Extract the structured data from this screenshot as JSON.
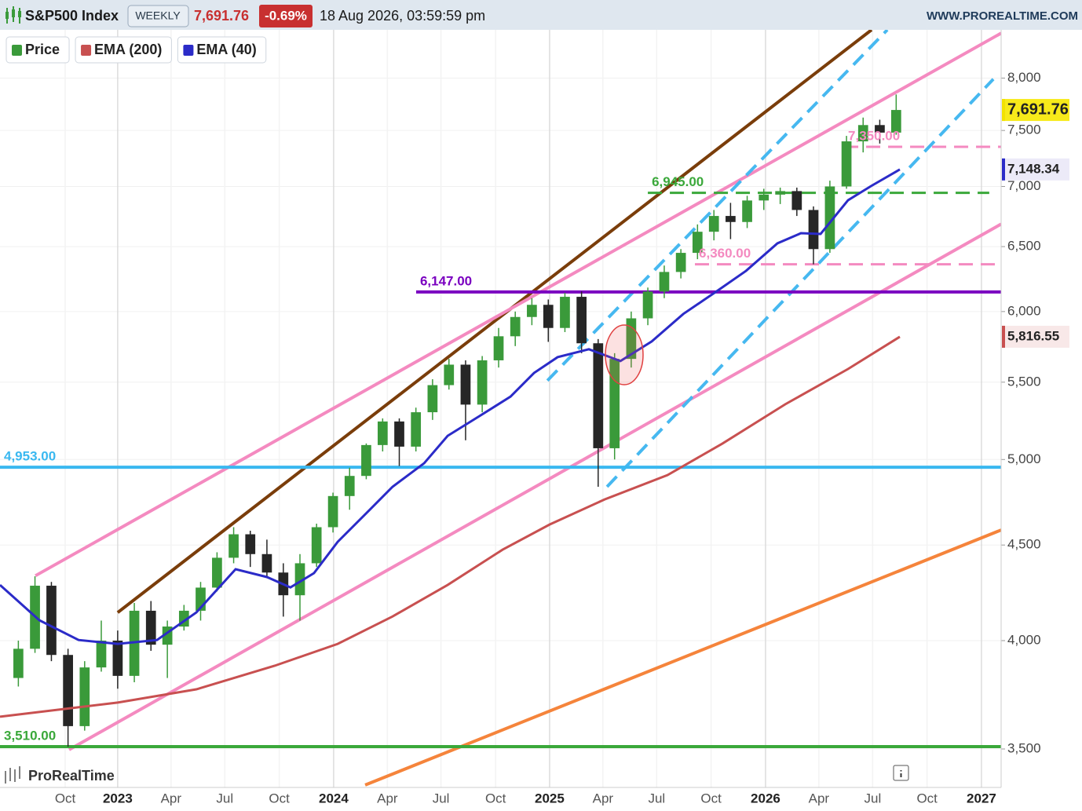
{
  "header": {
    "title": "S&P500 Index",
    "interval": "WEEKLY",
    "price": "7,691.76",
    "change": "-0.69%",
    "datetime": "18 Aug 2026, 03:59:59 pm",
    "site": "WWW.PROREALTIME.COM"
  },
  "footer": {
    "brand": "ProRealTime"
  },
  "chart_data": {
    "type": "candlestick",
    "log_scale": true,
    "xlim": [
      2022.455,
      2027.091
    ],
    "ylim": [
      3338,
      8490
    ],
    "xticks": [
      {
        "value": 2022.757,
        "label": "Oct"
      },
      {
        "value": 2023,
        "label": "2023"
      },
      {
        "value": 2023.247,
        "label": "Apr"
      },
      {
        "value": 2023.496,
        "label": "Jul"
      },
      {
        "value": 2023.748,
        "label": "Oct"
      },
      {
        "value": 2024,
        "label": "2024"
      },
      {
        "value": 2024.249,
        "label": "Apr"
      },
      {
        "value": 2024.497,
        "label": "Jul"
      },
      {
        "value": 2024.75,
        "label": "Oct"
      },
      {
        "value": 2025,
        "label": "2025"
      },
      {
        "value": 2025.247,
        "label": "Apr"
      },
      {
        "value": 2025.496,
        "label": "Jul"
      },
      {
        "value": 2025.748,
        "label": "Oct"
      },
      {
        "value": 2026,
        "label": "2026"
      },
      {
        "value": 2026.247,
        "label": "Apr"
      },
      {
        "value": 2026.496,
        "label": "Jul"
      },
      {
        "value": 2026.748,
        "label": "Oct"
      },
      {
        "value": 2027,
        "label": "2027"
      }
    ],
    "yticks": [
      {
        "value": 3500,
        "label": "3,500"
      },
      {
        "value": 4000,
        "label": "4,000"
      },
      {
        "value": 4500,
        "label": "4,500"
      },
      {
        "value": 5000,
        "label": "5,000"
      },
      {
        "value": 5500,
        "label": "5,500"
      },
      {
        "value": 6000,
        "label": "6,000"
      },
      {
        "value": 6500,
        "label": "6,500"
      },
      {
        "value": 7000,
        "label": "7,000"
      },
      {
        "value": 7500,
        "label": "7,500"
      },
      {
        "value": 8000,
        "label": "8,000"
      }
    ],
    "grid": true,
    "up_color": "#3a9a3a",
    "down_color": "#262626",
    "candles": {
      "name": "Price",
      "color": "#3a9a3a",
      "x": [
        2022.54,
        2022.617,
        2022.693,
        2022.77,
        2022.847,
        2022.924,
        2023.0,
        2023.077,
        2023.154,
        2023.23,
        2023.307,
        2023.384,
        2023.46,
        2023.537,
        2023.614,
        2023.691,
        2023.767,
        2023.844,
        2023.921,
        2023.997,
        2024.074,
        2024.151,
        2024.227,
        2024.304,
        2024.381,
        2024.458,
        2024.534,
        2024.611,
        2024.688,
        2024.764,
        2024.841,
        2024.918,
        2024.994,
        2025.071,
        2025.148,
        2025.225,
        2025.301,
        2025.378,
        2025.455,
        2025.531,
        2025.608,
        2025.685,
        2025.761,
        2025.838,
        2025.915,
        2025.992,
        2026.068,
        2026.145,
        2026.222,
        2026.298,
        2026.375,
        2026.452,
        2026.529,
        2026.605
      ],
      "open": [
        3820,
        3960,
        4280,
        3930,
        3600,
        3870,
        4000,
        3830,
        4150,
        3980,
        4070,
        4150,
        4270,
        4430,
        4560,
        4450,
        4350,
        4230,
        4400,
        4600,
        4780,
        4900,
        5090,
        5240,
        5080,
        5300,
        5480,
        5620,
        5350,
        5650,
        5820,
        5960,
        6050,
        5880,
        6110,
        5770,
        5070,
        5660,
        5950,
        6150,
        6300,
        6450,
        6620,
        6750,
        6700,
        6880,
        6930,
        6960,
        6800,
        6480,
        7000,
        7400,
        7550,
        7480
      ],
      "high": [
        4000,
        4330,
        4300,
        3960,
        3900,
        4100,
        4050,
        4190,
        4200,
        4100,
        4180,
        4300,
        4460,
        4600,
        4580,
        4530,
        4400,
        4450,
        4620,
        4800,
        4950,
        5100,
        5260,
        5260,
        5330,
        5520,
        5660,
        5650,
        5680,
        5880,
        6000,
        6100,
        6090,
        6140,
        6150,
        5800,
        5700,
        6000,
        6180,
        6350,
        6480,
        6680,
        6800,
        6860,
        6920,
        6980,
        6990,
        6990,
        6830,
        7050,
        7450,
        7620,
        7600,
        7840
      ],
      "low": [
        3780,
        3940,
        3900,
        3510,
        3580,
        3850,
        3770,
        3800,
        3950,
        3820,
        4050,
        4100,
        4250,
        4400,
        4380,
        4320,
        4120,
        4100,
        4380,
        4570,
        4700,
        4880,
        5050,
        4960,
        5050,
        5250,
        5450,
        5120,
        5300,
        5600,
        5750,
        5900,
        5780,
        5850,
        5700,
        4835,
        5000,
        5600,
        5900,
        6100,
        6250,
        6400,
        6550,
        6560,
        6650,
        6800,
        6850,
        6750,
        6360,
        6450,
        6980,
        7300,
        7380,
        7460
      ],
      "close": [
        3960,
        4280,
        3930,
        3600,
        3870,
        4000,
        3830,
        4150,
        3980,
        4070,
        4150,
        4270,
        4430,
        4560,
        4450,
        4350,
        4230,
        4400,
        4600,
        4780,
        4900,
        5090,
        5240,
        5080,
        5300,
        5480,
        5620,
        5350,
        5650,
        5820,
        5960,
        6050,
        5880,
        6110,
        5770,
        5070,
        5660,
        5950,
        6150,
        6300,
        6450,
        6620,
        6750,
        6700,
        6880,
        6930,
        6960,
        6800,
        6480,
        7000,
        7400,
        7550,
        7480,
        7691.76
      ]
    },
    "series": [
      {
        "name": "EMA (200)",
        "color": "#c85050",
        "x": [
          2022.455,
          2023.0,
          2023.364,
          2023.727,
          2024.019,
          2024.273,
          2024.528,
          2024.782,
          2025.0,
          2025.255,
          2025.546,
          2025.8,
          2026.091,
          2026.382,
          2026.622
        ],
        "values": [
          3642,
          3706,
          3767,
          3878,
          3984,
          4121,
          4284,
          4474,
          4615,
          4760,
          4905,
          5099,
          5352,
          5590,
          5816.55
        ]
      },
      {
        "name": "EMA (40)",
        "color": "#2b2bc8",
        "x": [
          2022.455,
          2022.637,
          2022.819,
          2023.0,
          2023.182,
          2023.364,
          2023.546,
          2023.691,
          2023.8,
          2023.909,
          2024.019,
          2024.164,
          2024.273,
          2024.419,
          2024.528,
          2024.673,
          2024.819,
          2024.928,
          2025.037,
          2025.182,
          2025.328,
          2025.473,
          2025.619,
          2025.764,
          2025.91,
          2026.055,
          2026.164,
          2026.255,
          2026.382,
          2026.491,
          2026.622
        ],
        "values": [
          4284,
          4102,
          4003,
          3984,
          4003,
          4141,
          4368,
          4326,
          4271,
          4347,
          4518,
          4696,
          4835,
          4977,
          5148,
          5273,
          5403,
          5563,
          5672,
          5728,
          5645,
          5783,
          5982,
          6141,
          6309,
          6526,
          6608,
          6602,
          6882,
          7006,
          7148.34
        ]
      }
    ],
    "last_labels": [
      {
        "value": 7691.76,
        "label": "7,691.76",
        "color": "#f2e200",
        "background": "#f7ea1a"
      },
      {
        "value": 7148.34,
        "label": "7,148.34",
        "color": "#2b2bc8",
        "background": "#eceaf8"
      },
      {
        "value": 5816.55,
        "label": "5,816.55",
        "color": "#c85050",
        "background": "#f8e8e8"
      }
    ],
    "trendlines": [
      {
        "color": "#7a3d0a",
        "x": [
          2023.0,
          2026.491
        ],
        "y": [
          4141,
          8490
        ],
        "dashed": false
      },
      {
        "color": "#f48ac0",
        "x": [
          2022.619,
          2027.091
        ],
        "y": [
          4333,
          8455
        ],
        "dashed": false
      },
      {
        "color": "#f48ac0",
        "x": [
          2022.775,
          2027.091
        ],
        "y": [
          3497,
          6683
        ],
        "dashed": false
      },
      {
        "color": "#f5843b",
        "x": [
          2024.146,
          2027.091
        ],
        "y": [
          3348,
          4584
        ],
        "dashed": false
      },
      {
        "color": "#46b8f0",
        "x": [
          2024.99,
          2026.564
        ],
        "y": [
          5511,
          8490
        ],
        "dashed": true
      },
      {
        "color": "#46b8f0",
        "x": [
          2025.266,
          2027.055
        ],
        "y": [
          4835,
          7990
        ],
        "dashed": true
      }
    ],
    "levels": [
      {
        "value": 6147,
        "label": "6,147.00",
        "color": "#7a00c0",
        "x": [
          2024.382,
          2027.091
        ],
        "dashed": false
      },
      {
        "value": 4953,
        "label": "4,953.00",
        "color": "#3ab8f0",
        "x": [
          2022.455,
          2027.091
        ],
        "dashed": false
      },
      {
        "value": 3510,
        "label": "3,510.00",
        "color": "#3aa83a",
        "x": [
          2022.455,
          2027.091
        ],
        "dashed": false
      },
      {
        "value": 6945,
        "label": "6,945.00",
        "color": "#3aa83a",
        "x": [
          2025.455,
          2027.036
        ],
        "dashed": true
      },
      {
        "value": 6360,
        "label": "6,360.00",
        "color": "#f48ac0",
        "x": [
          2025.673,
          2027.091
        ],
        "dashed": true
      },
      {
        "value": 7350,
        "label": "7,350.00",
        "color": "#f48ac0",
        "x": [
          2026.364,
          2027.091
        ],
        "dashed": true
      }
    ]
  }
}
